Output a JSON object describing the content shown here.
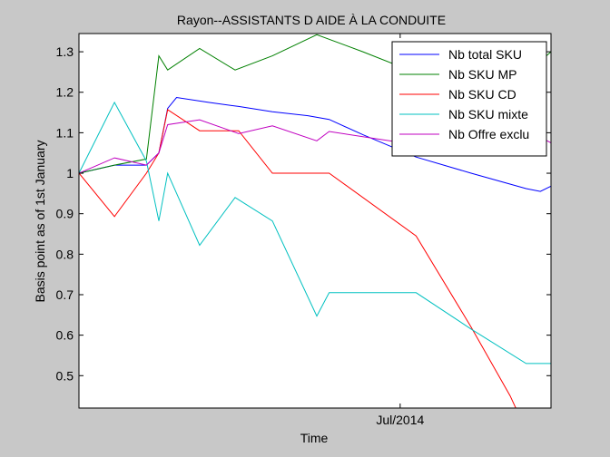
{
  "chart_data": {
    "type": "line",
    "title": "Rayon--ASSISTANTS D AIDE À LA CONDUITE",
    "xlabel": "Time",
    "ylabel": "Basis point as of 1st January",
    "x_unit": "date",
    "xlim": [
      "2014-01-01",
      "2014-09-24"
    ],
    "ylim": [
      0.42,
      1.345
    ],
    "yticks": [
      0.5,
      0.6,
      0.7,
      0.8,
      0.9,
      1,
      1.1,
      1.2,
      1.3
    ],
    "ytick_labels": [
      "0.5",
      "0.6",
      "0.7",
      "0.8",
      "0.9",
      "1",
      "1.1",
      "1.2",
      "1.3"
    ],
    "xticks": [
      "2014-07-01"
    ],
    "xtick_labels": [
      "Jul/2014"
    ],
    "grid": false,
    "legend_position": "top-right",
    "colors": {
      "figure_background": "#c8c8c8",
      "axes_background": "#ffffff",
      "legend_border": "#000000"
    },
    "series": [
      {
        "name": "Nb total SKU",
        "color": "#0000ff",
        "points": [
          [
            "2014-01-01",
            1.0
          ],
          [
            "2014-01-21",
            1.02
          ],
          [
            "2014-02-08",
            1.02
          ],
          [
            "2014-02-15",
            1.05
          ],
          [
            "2014-02-20",
            1.16
          ],
          [
            "2014-02-25",
            1.187
          ],
          [
            "2014-03-15",
            1.175
          ],
          [
            "2014-04-01",
            1.165
          ],
          [
            "2014-04-20",
            1.152
          ],
          [
            "2014-05-10",
            1.142
          ],
          [
            "2014-05-22",
            1.133
          ],
          [
            "2014-06-10",
            1.095
          ],
          [
            "2014-07-10",
            1.04
          ],
          [
            "2014-08-10",
            1.0
          ],
          [
            "2014-09-10",
            0.962
          ],
          [
            "2014-09-18",
            0.955
          ],
          [
            "2014-09-24",
            0.968
          ]
        ]
      },
      {
        "name": "Nb SKU MP",
        "color": "#008000",
        "points": [
          [
            "2014-01-01",
            1.0
          ],
          [
            "2014-01-21",
            1.02
          ],
          [
            "2014-02-08",
            1.035
          ],
          [
            "2014-02-15",
            1.29
          ],
          [
            "2014-02-20",
            1.255
          ],
          [
            "2014-03-10",
            1.308
          ],
          [
            "2014-03-30",
            1.255
          ],
          [
            "2014-04-20",
            1.29
          ],
          [
            "2014-05-15",
            1.342
          ],
          [
            "2014-06-10",
            1.3
          ],
          [
            "2014-07-10",
            1.248
          ],
          [
            "2014-08-10",
            1.2
          ],
          [
            "2014-09-10",
            1.245
          ],
          [
            "2014-09-24",
            1.3
          ]
        ]
      },
      {
        "name": "Nb SKU CD",
        "color": "#ff0000",
        "points": [
          [
            "2014-01-01",
            1.0
          ],
          [
            "2014-01-21",
            0.893
          ],
          [
            "2014-02-08",
            1.0
          ],
          [
            "2014-02-15",
            1.05
          ],
          [
            "2014-02-20",
            1.157
          ],
          [
            "2014-03-10",
            1.105
          ],
          [
            "2014-04-01",
            1.105
          ],
          [
            "2014-04-20",
            1.0
          ],
          [
            "2014-05-22",
            1.0
          ],
          [
            "2014-07-10",
            0.845
          ],
          [
            "2014-08-10",
            0.62
          ],
          [
            "2014-09-01",
            0.45
          ],
          [
            "2014-09-10",
            0.365
          ]
        ]
      },
      {
        "name": "Nb SKU mixte",
        "color": "#00c0c0",
        "points": [
          [
            "2014-01-01",
            1.0
          ],
          [
            "2014-01-21",
            1.175
          ],
          [
            "2014-02-08",
            1.03
          ],
          [
            "2014-02-15",
            0.882
          ],
          [
            "2014-02-20",
            1.0
          ],
          [
            "2014-03-10",
            0.822
          ],
          [
            "2014-03-30",
            0.94
          ],
          [
            "2014-04-20",
            0.882
          ],
          [
            "2014-05-15",
            0.647
          ],
          [
            "2014-05-22",
            0.705
          ],
          [
            "2014-07-10",
            0.705
          ],
          [
            "2014-08-10",
            0.615
          ],
          [
            "2014-09-10",
            0.53
          ],
          [
            "2014-09-24",
            0.53
          ]
        ]
      },
      {
        "name": "Nb Offre exclu",
        "color": "#c000c0",
        "points": [
          [
            "2014-01-01",
            1.0
          ],
          [
            "2014-01-21",
            1.038
          ],
          [
            "2014-02-08",
            1.02
          ],
          [
            "2014-02-15",
            1.05
          ],
          [
            "2014-02-20",
            1.12
          ],
          [
            "2014-03-10",
            1.132
          ],
          [
            "2014-04-01",
            1.098
          ],
          [
            "2014-04-20",
            1.117
          ],
          [
            "2014-05-15",
            1.08
          ],
          [
            "2014-05-22",
            1.103
          ],
          [
            "2014-07-10",
            1.07
          ],
          [
            "2014-08-10",
            1.08
          ],
          [
            "2014-09-10",
            1.108
          ],
          [
            "2014-09-24",
            1.075
          ]
        ]
      }
    ]
  }
}
